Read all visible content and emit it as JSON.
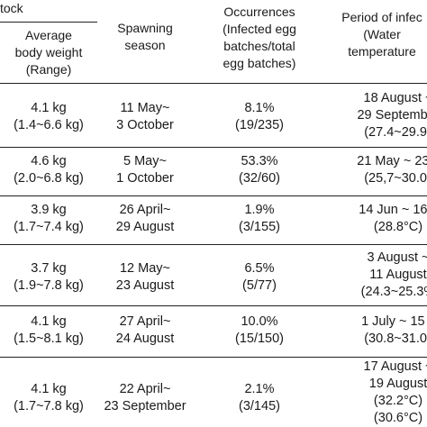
{
  "header": {
    "group_label": "tock",
    "col1": [
      "Average",
      "body weight",
      "(Range)"
    ],
    "col2": [
      "Spawning",
      "season"
    ],
    "col3": [
      "Occurrences",
      "(Infected egg",
      "batches/total",
      "egg batches)"
    ],
    "col4": [
      "Period of infec",
      "(Water",
      "temperature"
    ]
  },
  "rows": [
    {
      "weight": [
        "4.1 kg",
        "(1.4~6.6 kg)"
      ],
      "season": [
        "11 May~",
        "3 October"
      ],
      "occurrence": [
        "8.1%",
        "(19/235)"
      ],
      "period": [
        "18 August ~",
        "29 September",
        "(27.4~29.9°"
      ]
    },
    {
      "weight": [
        "4.6 kg",
        "(2.0~6.8 kg)"
      ],
      "season": [
        "5 May~",
        "1 October"
      ],
      "occurrence": [
        "53.3%",
        "(32/60)"
      ],
      "period": [
        "21 May ~ 23 J",
        "(25,7~30.0°"
      ]
    },
    {
      "weight": [
        "3.9 kg",
        "(1.7~7.4 kg)"
      ],
      "season": [
        "26 April~",
        "29 August"
      ],
      "occurrence": [
        "1.9%",
        "(3/155)"
      ],
      "period": [
        "14 Jun ~ 16 J",
        "(28.8°C)"
      ]
    },
    {
      "weight": [
        "3.7 kg",
        "(1.9~7.8 kg)"
      ],
      "season": [
        "12 May~",
        "23 August"
      ],
      "occurrence": [
        "6.5%",
        "(5/77)"
      ],
      "period": [
        "3 August ~",
        "11 August",
        "(24.3~25.3%"
      ]
    },
    {
      "weight": [
        "4.1 kg",
        "(1.5~8.1 kg)"
      ],
      "season": [
        "27 April~",
        "24 August"
      ],
      "occurrence": [
        "10.0%",
        "(15/150)"
      ],
      "period": [
        "1 July ~ 15 J",
        "(30.8~31.0°"
      ]
    },
    {
      "weight": [
        "4.1 kg",
        "(1.7~7.8 kg)"
      ],
      "season": [
        "22 April~",
        "23 September"
      ],
      "occurrence": [
        "2.1%",
        "(3/145)"
      ],
      "period": [
        "17 August ~",
        "19 August",
        "(32.2°C)",
        "(30.6°C)"
      ]
    }
  ]
}
